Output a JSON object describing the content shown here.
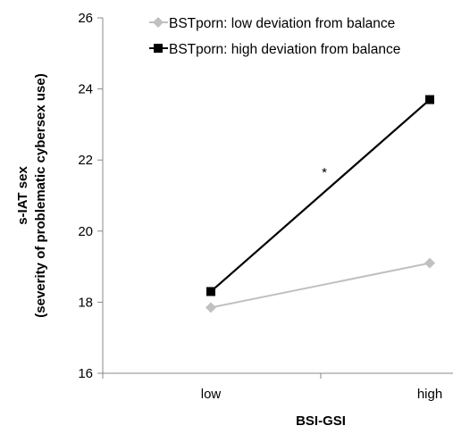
{
  "chart_data": {
    "type": "line",
    "categories": [
      "low",
      "high"
    ],
    "series": [
      {
        "name": "BSTporn: low deviation from balance",
        "values": [
          17.85,
          19.1
        ],
        "color": "#c0c0c0",
        "marker": "diamond"
      },
      {
        "name": "BSTporn: high deviation from balance",
        "values": [
          18.3,
          23.7
        ],
        "color": "#000000",
        "marker": "square"
      }
    ],
    "xlabel": "BSI-GSI",
    "ylabel": [
      "s-IAT sex",
      "(severity of problematic cybersex use)"
    ],
    "ylim": [
      16,
      26
    ],
    "yticks": [
      16,
      18,
      20,
      22,
      24,
      26
    ],
    "grid": false,
    "legend": "top-right",
    "annotations": [
      {
        "text": "*",
        "series": 1,
        "near": "middle of line"
      }
    ]
  }
}
